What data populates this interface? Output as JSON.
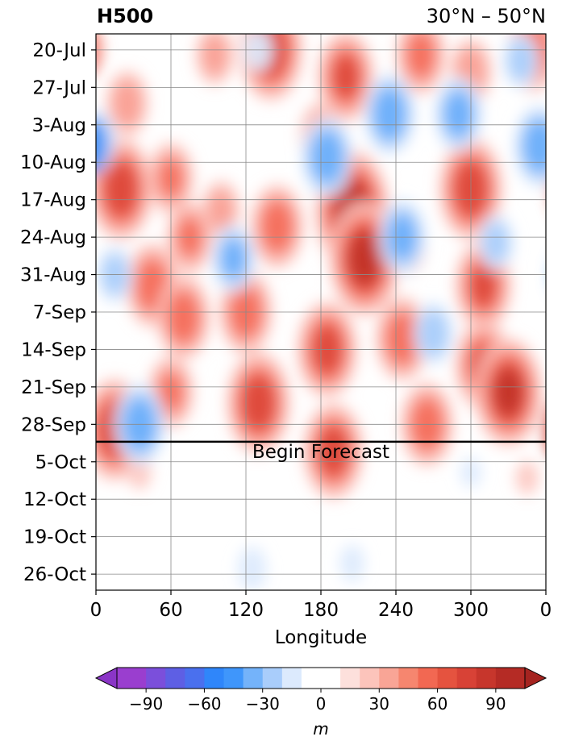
{
  "chart_data": {
    "type": "heatmap",
    "title_left": "H500",
    "title_right": "30°N – 50°N",
    "xlabel": "Longitude",
    "ylabel": "",
    "x_ticks": [
      "0",
      "60",
      "120",
      "180",
      "240",
      "300",
      "0"
    ],
    "x_tick_values": [
      0,
      60,
      120,
      180,
      240,
      300,
      360
    ],
    "y_ticks": [
      "20-Jul",
      "27-Jul",
      "3-Aug",
      "10-Aug",
      "17-Aug",
      "24-Aug",
      "31-Aug",
      "7-Sep",
      "14-Sep",
      "21-Sep",
      "28-Sep",
      "5-Oct",
      "12-Oct",
      "19-Oct",
      "26-Oct"
    ],
    "forecast_label": "Begin Forecast",
    "forecast_start": "2-Oct",
    "colorbar": {
      "label": "m",
      "ticks": [
        "−90",
        "−60",
        "−30",
        "0",
        "30",
        "60",
        "90"
      ],
      "tick_values": [
        -90,
        -60,
        -30,
        0,
        30,
        60,
        90
      ],
      "range": [
        -105,
        105
      ],
      "colors": [
        "#9a3ecf",
        "#7b4fdb",
        "#5e5fe4",
        "#4379ef",
        "#2b8cfb",
        "#56a4fb",
        "#92c3fa",
        "#c4defc",
        "#ffffff",
        "#ffffff",
        "#fdd3d0",
        "#fbada5",
        "#f8897d",
        "#f3654f",
        "#e04a3a",
        "#cc3a30",
        "#b72e28"
      ],
      "extend": "both"
    },
    "grid": true,
    "anomalies": [
      {
        "lon": 140,
        "date": "20-Jul",
        "value": 70
      },
      {
        "lon": 200,
        "date": "25-Jul",
        "value": 60
      },
      {
        "lon": 260,
        "date": "21-Jul",
        "value": 50
      },
      {
        "lon": 300,
        "date": "24-Jul",
        "value": 40
      },
      {
        "lon": 350,
        "date": "20-Jul",
        "value": 55
      },
      {
        "lon": 95,
        "date": "21-Jul",
        "value": 35
      },
      {
        "lon": 25,
        "date": "30-Jul",
        "value": 40
      },
      {
        "lon": 20,
        "date": "15-Aug",
        "value": 70
      },
      {
        "lon": 60,
        "date": "13-Aug",
        "value": 45
      },
      {
        "lon": 205,
        "date": "19-Aug",
        "value": 85
      },
      {
        "lon": 215,
        "date": "28-Aug",
        "value": 80
      },
      {
        "lon": 300,
        "date": "15-Aug",
        "value": 70
      },
      {
        "lon": 310,
        "date": "2-Sep",
        "value": 60
      },
      {
        "lon": 145,
        "date": "22-Aug",
        "value": 55
      },
      {
        "lon": 100,
        "date": "19-Aug",
        "value": 35
      },
      {
        "lon": 75,
        "date": "24-Aug",
        "value": 45
      },
      {
        "lon": 45,
        "date": "2-Sep",
        "value": 55
      },
      {
        "lon": 120,
        "date": "7-Sep",
        "value": 55
      },
      {
        "lon": 70,
        "date": "8-Sep",
        "value": 55
      },
      {
        "lon": 185,
        "date": "14-Sep",
        "value": 65
      },
      {
        "lon": 245,
        "date": "12-Sep",
        "value": 55
      },
      {
        "lon": 310,
        "date": "17-Sep",
        "value": 60
      },
      {
        "lon": 330,
        "date": "22-Sep",
        "value": 75
      },
      {
        "lon": 130,
        "date": "24-Sep",
        "value": 70
      },
      {
        "lon": 60,
        "date": "22-Sep",
        "value": 45
      },
      {
        "lon": 15,
        "date": "29-Sep",
        "value": 70
      },
      {
        "lon": 190,
        "date": "3-Oct",
        "value": 65
      },
      {
        "lon": 265,
        "date": "28-Sep",
        "value": 55
      },
      {
        "lon": 35,
        "date": "7-Oct",
        "value": 15
      },
      {
        "lon": 345,
        "date": "8-Oct",
        "value": 15
      },
      {
        "lon": 180,
        "date": "5-Aug",
        "value": 40
      },
      {
        "lon": 250,
        "date": "26-Aug",
        "value": 30
      },
      {
        "lon": 0,
        "date": "6-Aug",
        "value": -40
      },
      {
        "lon": 185,
        "date": "9-Aug",
        "value": -55
      },
      {
        "lon": 235,
        "date": "1-Aug",
        "value": -55
      },
      {
        "lon": 290,
        "date": "1-Aug",
        "value": -50
      },
      {
        "lon": 355,
        "date": "7-Aug",
        "value": -55
      },
      {
        "lon": 110,
        "date": "28-Aug",
        "value": -45
      },
      {
        "lon": 245,
        "date": "24-Aug",
        "value": -50
      },
      {
        "lon": 320,
        "date": "25-Aug",
        "value": -35
      },
      {
        "lon": 15,
        "date": "31-Aug",
        "value": -35
      },
      {
        "lon": 270,
        "date": "11-Sep",
        "value": -40
      },
      {
        "lon": 35,
        "date": "28-Sep",
        "value": -55
      },
      {
        "lon": 130,
        "date": "20-Jul",
        "value": -25
      },
      {
        "lon": 340,
        "date": "22-Jul",
        "value": -35
      },
      {
        "lon": 125,
        "date": "25-Oct",
        "value": -25
      },
      {
        "lon": 205,
        "date": "24-Oct",
        "value": -20
      },
      {
        "lon": 300,
        "date": "7-Oct",
        "value": -15
      }
    ]
  }
}
